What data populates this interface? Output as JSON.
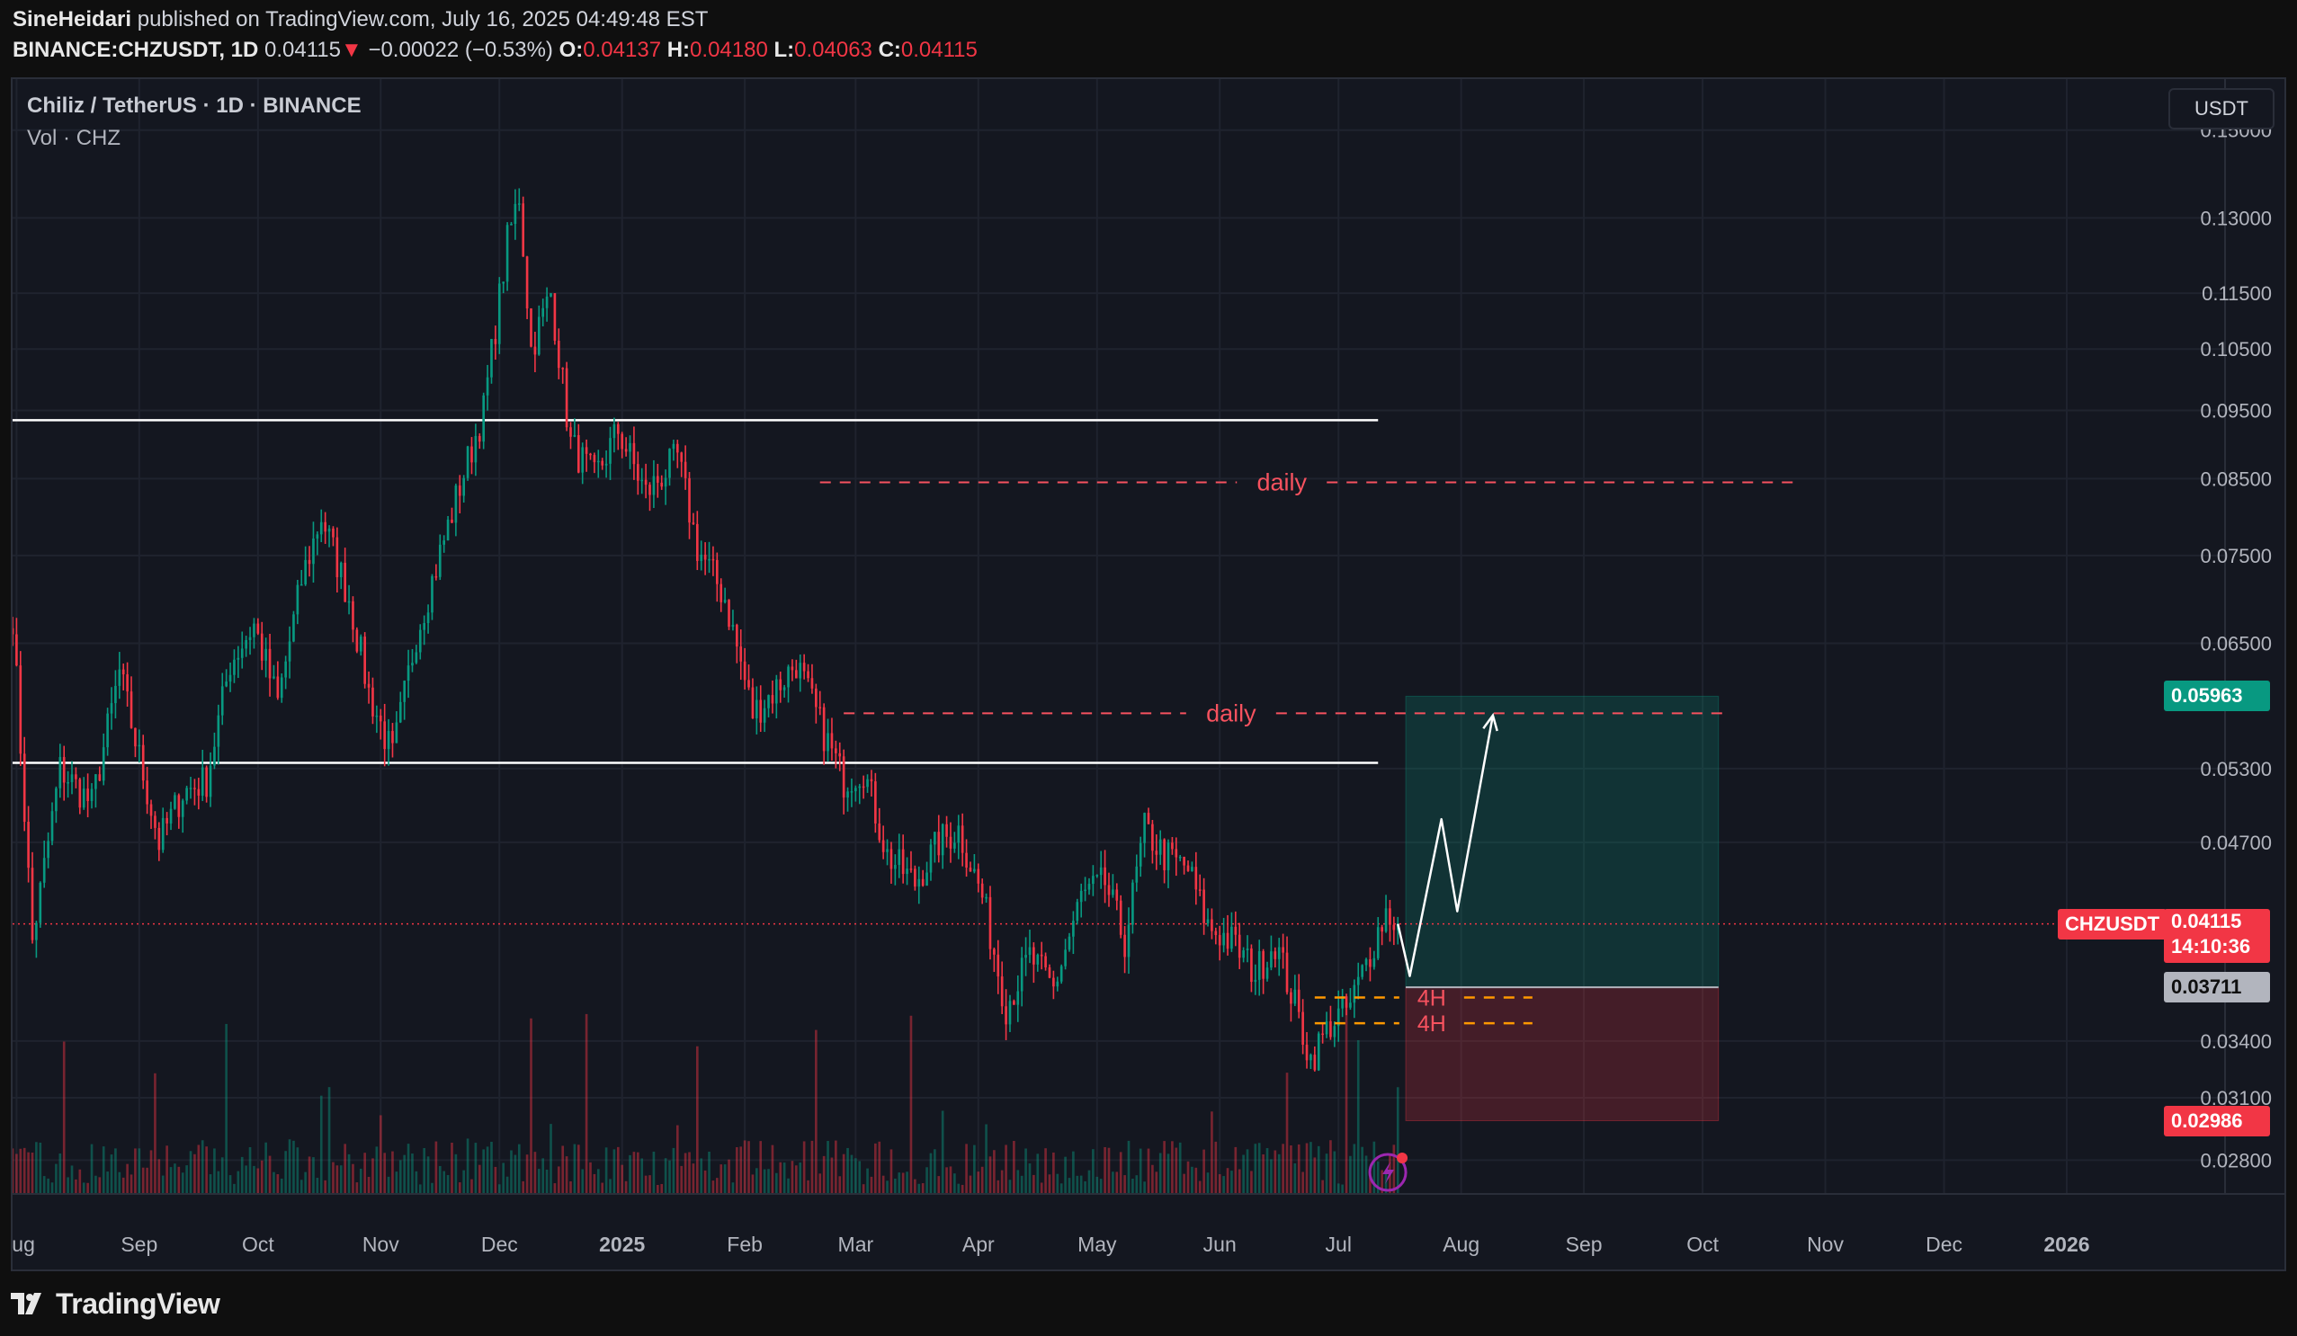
{
  "header": {
    "author": "SineHeidari",
    "published_text": "published on TradingView.com, July 16, 2025 04:49:48 EST",
    "symbol": "BINANCE:CHZUSDT, 1D",
    "last": "0.04115",
    "change_arrow": "▼",
    "change": "−0.00022 (−0.53%)",
    "o_label": "O:",
    "o": "0.04137",
    "h_label": "H:",
    "h": "0.04180",
    "l_label": "L:",
    "l": "0.04063",
    "c_label": "C:",
    "c": "0.04115"
  },
  "legend": {
    "title": "Chiliz / TetherUS · 1D · BINANCE",
    "volume": "Vol · CHZ"
  },
  "currency": "USDT",
  "price_tags": {
    "symbol": "CHZUSDT",
    "price": "0.04115",
    "countdown": "14:10:36",
    "take_profit": "0.05963",
    "entry": "0.03711",
    "stop_loss": "0.02986"
  },
  "footer": {
    "brand": "TradingView"
  },
  "colors": {
    "up": "#089981",
    "down": "#f23645",
    "background": "#141720",
    "grid": "#1f232e",
    "text": "#b2b5be"
  },
  "chart_data": {
    "type": "candlestick",
    "title": "Chiliz / TetherUS · 1D · BINANCE",
    "symbol": "BINANCE:CHZUSDT",
    "interval": "1D",
    "y_scale": "log",
    "y_ticks": [
      "0.15000",
      "0.13000",
      "0.11500",
      "0.10500",
      "0.09500",
      "0.08500",
      "0.07500",
      "0.06500",
      "0.05300",
      "0.04700",
      "0.03400",
      "0.03100",
      "0.02800"
    ],
    "x_ticks": [
      "Aug",
      "Sep",
      "Oct",
      "Nov",
      "Dec",
      "2025",
      "Feb",
      "Mar",
      "Apr",
      "May",
      "Jun",
      "Jul",
      "Aug",
      "Sep",
      "Oct",
      "Nov",
      "Dec",
      "2026"
    ],
    "x_tick_dates": [
      "2024-08-01",
      "2024-09-01",
      "2024-10-01",
      "2024-11-01",
      "2024-12-01",
      "2025-01-01",
      "2025-02-01",
      "2025-03-01",
      "2025-04-01",
      "2025-05-01",
      "2025-06-01",
      "2025-07-01",
      "2025-08-01",
      "2025-09-01",
      "2025-10-01",
      "2025-11-01",
      "2025-12-01",
      "2026-01-01"
    ],
    "x_range": [
      "2024-07-31",
      "2026-02-10"
    ],
    "y_range": [
      0.0265,
      0.163
    ],
    "price_anchors": [
      [
        "2024-07-31",
        0.068
      ],
      [
        "2024-08-05",
        0.04
      ],
      [
        "2024-08-12",
        0.053
      ],
      [
        "2024-08-20",
        0.05
      ],
      [
        "2024-08-27",
        0.062
      ],
      [
        "2024-09-06",
        0.047
      ],
      [
        "2024-09-12",
        0.051
      ],
      [
        "2024-09-18",
        0.052
      ],
      [
        "2024-09-24",
        0.063
      ],
      [
        "2024-09-30",
        0.067
      ],
      [
        "2024-10-06",
        0.059
      ],
      [
        "2024-10-12",
        0.072
      ],
      [
        "2024-10-17",
        0.08
      ],
      [
        "2024-10-24",
        0.07
      ],
      [
        "2024-10-29",
        0.06
      ],
      [
        "2024-11-04",
        0.054
      ],
      [
        "2024-11-10",
        0.066
      ],
      [
        "2024-11-14",
        0.072
      ],
      [
        "2024-11-21",
        0.084
      ],
      [
        "2024-11-27",
        0.095
      ],
      [
        "2024-12-03",
        0.125
      ],
      [
        "2024-12-06",
        0.135
      ],
      [
        "2024-12-09",
        0.105
      ],
      [
        "2024-12-14",
        0.115
      ],
      [
        "2024-12-19",
        0.09
      ],
      [
        "2024-12-25",
        0.085
      ],
      [
        "2024-12-31",
        0.092
      ],
      [
        "2025-01-07",
        0.083
      ],
      [
        "2025-01-15",
        0.088
      ],
      [
        "2025-01-20",
        0.076
      ],
      [
        "2025-01-27",
        0.07
      ],
      [
        "2025-02-03",
        0.058
      ],
      [
        "2025-02-08",
        0.06
      ],
      [
        "2025-02-14",
        0.063
      ],
      [
        "2025-02-20",
        0.057
      ],
      [
        "2025-02-26",
        0.052
      ],
      [
        "2025-03-03",
        0.053
      ],
      [
        "2025-03-09",
        0.046
      ],
      [
        "2025-03-16",
        0.044
      ],
      [
        "2025-03-22",
        0.047
      ],
      [
        "2025-03-27",
        0.048
      ],
      [
        "2025-04-02",
        0.043
      ],
      [
        "2025-04-08",
        0.036
      ],
      [
        "2025-04-14",
        0.039
      ],
      [
        "2025-04-20",
        0.037
      ],
      [
        "2025-04-27",
        0.043
      ],
      [
        "2025-05-03",
        0.044
      ],
      [
        "2025-05-08",
        0.04
      ],
      [
        "2025-05-13",
        0.048
      ],
      [
        "2025-05-18",
        0.046
      ],
      [
        "2025-05-24",
        0.045
      ],
      [
        "2025-05-29",
        0.041
      ],
      [
        "2025-06-04",
        0.04
      ],
      [
        "2025-06-10",
        0.038
      ],
      [
        "2025-06-15",
        0.04
      ],
      [
        "2025-06-20",
        0.036
      ],
      [
        "2025-06-24",
        0.033
      ],
      [
        "2025-06-29",
        0.035
      ],
      [
        "2025-07-04",
        0.036
      ],
      [
        "2025-07-10",
        0.04
      ],
      [
        "2025-07-13",
        0.042
      ],
      [
        "2025-07-16",
        0.04115
      ]
    ],
    "last_price": 0.04115,
    "current_price_line": 0.04115,
    "horizontal_lines": [
      {
        "price": 0.0935,
        "from": "2024-07-31",
        "to": "2025-07-11",
        "style": "solid",
        "color": "#ffffff"
      },
      {
        "price": 0.0535,
        "from": "2024-07-31",
        "to": "2025-07-11",
        "style": "solid",
        "color": "#ffffff"
      }
    ],
    "zone_lines": [
      {
        "label": "daily",
        "price": 0.0845,
        "from": "2025-02-20",
        "to": "2025-10-25"
      },
      {
        "label": "daily",
        "price": 0.058,
        "from": "2025-02-26",
        "to": "2025-10-07"
      },
      {
        "label": "4H",
        "price": 0.0365,
        "from": "2025-06-25",
        "to": "2025-08-19"
      },
      {
        "label": "4H",
        "price": 0.035,
        "from": "2025-06-25",
        "to": "2025-08-19"
      }
    ],
    "position": {
      "type": "long",
      "from": "2025-07-18",
      "to": "2025-10-05",
      "entry": 0.03711,
      "take_profit": 0.05963,
      "stop_loss": 0.02986
    },
    "projection_path": [
      [
        "2025-07-16",
        0.04115
      ],
      [
        "2025-07-19",
        0.0378
      ],
      [
        "2025-07-27",
        0.0488
      ],
      [
        "2025-07-31",
        0.042
      ],
      [
        "2025-08-09",
        0.0578
      ]
    ]
  }
}
